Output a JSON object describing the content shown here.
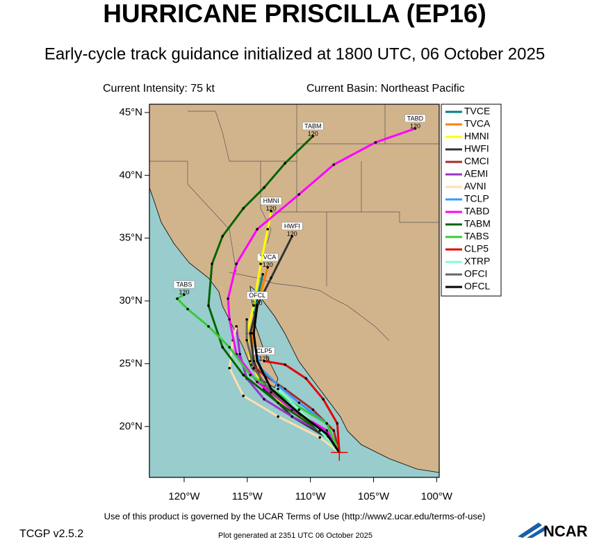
{
  "chart_data": {
    "type": "track_map",
    "title": "HURRICANE PRISCILLA (EP16)",
    "subtitle": "Early-cycle track guidance initialized at 1800 UTC, 06 October 2025",
    "intensity": "Current Intensity: 75 kt",
    "basin": "Current Basin: Northeast Pacific",
    "xlim": [
      -122.75,
      -99.8
    ],
    "ylim": [
      15.95,
      45.66
    ],
    "xticks": [
      {
        "value": -120,
        "label": "120°W"
      },
      {
        "value": -115,
        "label": "115°W"
      },
      {
        "value": -110,
        "label": "110°W"
      },
      {
        "value": -105,
        "label": "105°W"
      },
      {
        "value": -100,
        "label": "100°W"
      }
    ],
    "yticks": [
      {
        "value": 20,
        "label": "20°N"
      },
      {
        "value": 25,
        "label": "25°N"
      },
      {
        "value": 30,
        "label": "30°N"
      },
      {
        "value": 35,
        "label": "35°N"
      },
      {
        "value": 40,
        "label": "40°N"
      },
      {
        "value": 45,
        "label": "45°N"
      }
    ],
    "current_position": {
      "lon": -107.71,
      "lat": 17.93
    },
    "series": [
      {
        "name": "TVCE",
        "color": "#008080",
        "lon": [
          -107.71,
          -108.7,
          -111.45,
          -113.66,
          -114.49,
          -114.65,
          -114.21,
          -113.77
        ],
        "lat": [
          17.93,
          19.41,
          21.34,
          23.27,
          25.21,
          27.42,
          30.18,
          32.12
        ]
      },
      {
        "name": "TVCA",
        "color": "#ff8000",
        "lon": [
          -107.71,
          -108.7,
          -111.45,
          -113.66,
          -114.49,
          -114.65,
          -114.0,
          -113.38
        ],
        "lat": [
          17.93,
          19.41,
          21.34,
          23.27,
          25.21,
          27.42,
          30.4,
          32.67
        ],
        "end_hour": "120"
      },
      {
        "name": "HMNI",
        "color": "#ffff00",
        "lon": [
          -107.71,
          -108.7,
          -110.9,
          -113.66,
          -114.76,
          -115.04,
          -114.49,
          -113.94,
          -113.38,
          -113.11
        ],
        "lat": [
          17.93,
          19.13,
          20.79,
          22.99,
          25.21,
          27.42,
          29.63,
          32.95,
          35.71,
          37.15
        ],
        "end_hour": "120"
      },
      {
        "name": "HWFI",
        "color": "#333333",
        "lon": [
          -107.71,
          -108.7,
          -111.45,
          -113.66,
          -114.49,
          -114.76,
          -114.21,
          -113.11,
          -111.45
        ],
        "lat": [
          17.93,
          19.13,
          20.79,
          22.99,
          25.21,
          27.42,
          29.63,
          31.84,
          35.15
        ],
        "end_hour": "120"
      },
      {
        "name": "CMCI",
        "color": "#a52a2a",
        "lon": [
          -107.71,
          -108.15,
          -109.8,
          -112.01,
          -113.66,
          -114.65
        ],
        "lat": [
          17.93,
          19.68,
          21.34,
          22.99,
          24.1,
          24.93
        ]
      },
      {
        "name": "AEMI",
        "color": "#9933cc",
        "lon": [
          -107.71,
          -108.7,
          -111.45,
          -113.66,
          -115.04,
          -115.59,
          -115.86
        ],
        "lat": [
          17.93,
          19.41,
          20.79,
          22.17,
          23.83,
          25.76,
          27.97
        ]
      },
      {
        "name": "AVNI",
        "color": "#ffdead",
        "lon": [
          -107.71,
          -109.25,
          -112.56,
          -115.31,
          -116.41,
          -116.14,
          -115.86
        ],
        "lat": [
          17.93,
          19.13,
          20.79,
          22.44,
          24.65,
          26.87,
          27.97
        ]
      },
      {
        "name": "TCLP",
        "color": "#3399ff",
        "lon": [
          -107.71,
          -108.7,
          -110.9,
          -112.56,
          -113.94,
          -114.21
        ],
        "lat": [
          17.93,
          20.24,
          21.89,
          23.27,
          24.65,
          25.76
        ]
      },
      {
        "name": "TABD",
        "color": "#ff00ff",
        "lon": [
          -107.71,
          -108.7,
          -111.45,
          -114.21,
          -115.86,
          -116.41,
          -116.52,
          -115.86,
          -114.21,
          -110.9,
          -108.15,
          -104.84,
          -101.7
        ],
        "lat": [
          17.93,
          19.68,
          21.34,
          23.55,
          25.76,
          28.53,
          30.18,
          32.95,
          35.71,
          38.48,
          40.85,
          42.62,
          43.73
        ],
        "end_hour": "120"
      },
      {
        "name": "TABM",
        "color": "#006400",
        "lon": [
          -107.71,
          -109.25,
          -112.56,
          -115.31,
          -116.96,
          -118.07,
          -117.79,
          -116.96,
          -115.31,
          -113.66,
          -112.01,
          -109.8
        ],
        "lat": [
          17.93,
          19.68,
          21.89,
          24.1,
          26.31,
          29.63,
          32.95,
          35.15,
          37.37,
          39.03,
          40.96,
          43.12
        ],
        "end_hour": "120"
      },
      {
        "name": "TABS",
        "color": "#33cc33",
        "lon": [
          -107.71,
          -108.7,
          -111.45,
          -114.76,
          -116.41,
          -118.07,
          -119.72,
          -120.55,
          -120.0
        ],
        "lat": [
          17.93,
          20.24,
          21.89,
          24.1,
          26.31,
          27.97,
          29.35,
          30.18,
          30.5
        ],
        "end_hour": "120"
      },
      {
        "name": "CLP5",
        "color": "#e60000",
        "lon": [
          -107.71,
          -107.87,
          -108.98,
          -110.35,
          -112.01,
          -113.66
        ],
        "lat": [
          17.93,
          20.24,
          22.17,
          23.83,
          24.93,
          25.21
        ],
        "end_hour": "120"
      },
      {
        "name": "XTRP",
        "color": "#80ffcc",
        "lon": [
          -107.71,
          -109.25,
          -110.9,
          -112.56
        ],
        "lat": [
          17.93,
          19.68,
          21.34,
          22.99
        ]
      },
      {
        "name": "OFCI",
        "color": "#666666",
        "lon": [
          -107.71,
          -108.7,
          -110.9,
          -113.11,
          -114.49,
          -115.04,
          -115.04
        ],
        "lat": [
          17.93,
          19.41,
          21.06,
          22.72,
          24.65,
          26.87,
          28.53
        ]
      },
      {
        "name": "OFCL",
        "color": "#000000",
        "lon": [
          -107.71,
          -108.7,
          -110.9,
          -113.11,
          -114.21,
          -114.49,
          -114.21
        ],
        "lat": [
          17.93,
          19.41,
          21.06,
          22.99,
          25.21,
          27.42,
          29.63
        ],
        "end_hour": "120"
      }
    ],
    "terms": "Use of this product is governed by the UCAR Terms of Use (http://www2.ucar.edu/terms-of-use)",
    "version": "TCGP v2.5.2",
    "generated": "Plot generated at 2351 UTC   06 October 2025",
    "logo": "NCAR"
  }
}
